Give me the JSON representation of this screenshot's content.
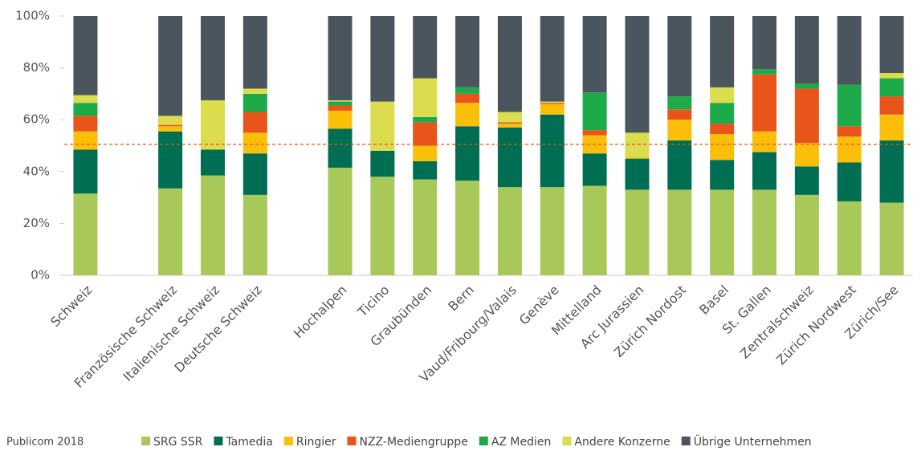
{
  "chart_data": {
    "type": "stacked_bar",
    "source": "Publicom 2018",
    "categories": [
      "Schweiz",
      null,
      "Französische Schweiz",
      "Italienische Schweiz",
      "Deutsche Schweiz",
      null,
      "Hochalpen",
      "Ticino",
      "Graubünden",
      "Bern",
      "Vaud/Fribourg/Valais",
      "Genève",
      "Mittelland",
      "Arc Jurassien",
      "Zürich Nordost",
      "Basel",
      "St. Gallen",
      "Zentralschweiz",
      "Zürich Nordwest",
      "Zürich/See"
    ],
    "series": [
      {
        "name": "SRG SSR",
        "color": "#a8c95a",
        "values": [
          31.5,
          null,
          33.5,
          38.5,
          31,
          null,
          41.5,
          38,
          37,
          36.5,
          34,
          34,
          34.5,
          33,
          33,
          33,
          33,
          31,
          28.5,
          28
        ]
      },
      {
        "name": "Tamedia",
        "color": "#006e52",
        "values": [
          17,
          null,
          22,
          10,
          16,
          null,
          15,
          10,
          7,
          21,
          23,
          28,
          12.5,
          12,
          19,
          11.5,
          14.5,
          11,
          15,
          24
        ]
      },
      {
        "name": "Ringier",
        "color": "#fbbf0a",
        "values": [
          7,
          null,
          2,
          0,
          8,
          null,
          7,
          0,
          6,
          9,
          1.5,
          4,
          7,
          0.5,
          8,
          10,
          8,
          9,
          10,
          10
        ]
      },
      {
        "name": "NZZ-Mediengruppe",
        "color": "#e8541a",
        "values": [
          6,
          null,
          0.5,
          0,
          8,
          null,
          2,
          0,
          9,
          3.5,
          0.5,
          0.5,
          2,
          0,
          4,
          4,
          22,
          21,
          4,
          7
        ]
      },
      {
        "name": "AZ Medien",
        "color": "#1daa4a",
        "values": [
          5,
          null,
          0,
          0,
          7,
          null,
          1.5,
          0,
          2,
          2.5,
          0,
          0,
          14.5,
          0,
          5,
          8,
          2,
          2,
          16,
          7
        ]
      },
      {
        "name": "Andere Konzerne",
        "color": "#dbdc4e",
        "values": [
          3,
          null,
          3.5,
          19,
          2,
          null,
          0.5,
          19,
          15,
          0,
          4,
          0.5,
          0,
          9.5,
          0,
          6,
          0,
          0,
          0,
          2
        ]
      },
      {
        "name": "Übrige Unternehmen",
        "color": "#4a555d",
        "values": [
          30.5,
          null,
          38.5,
          32.5,
          28,
          null,
          32.5,
          33,
          24,
          27.5,
          37,
          33,
          29.5,
          45,
          31,
          27.5,
          20.5,
          26,
          26.5,
          22
        ]
      }
    ],
    "ylim": [
      0,
      100
    ],
    "yticks": [
      {
        "value": 0,
        "label": "0%"
      },
      {
        "value": 20,
        "label": "20%"
      },
      {
        "value": 40,
        "label": "40%"
      },
      {
        "value": 60,
        "label": "60%"
      },
      {
        "value": 80,
        "label": "80%"
      },
      {
        "value": 100,
        "label": "100%"
      }
    ],
    "reference_line": {
      "value": 50.5,
      "color": "#e8541a"
    },
    "legend": "bottom"
  }
}
